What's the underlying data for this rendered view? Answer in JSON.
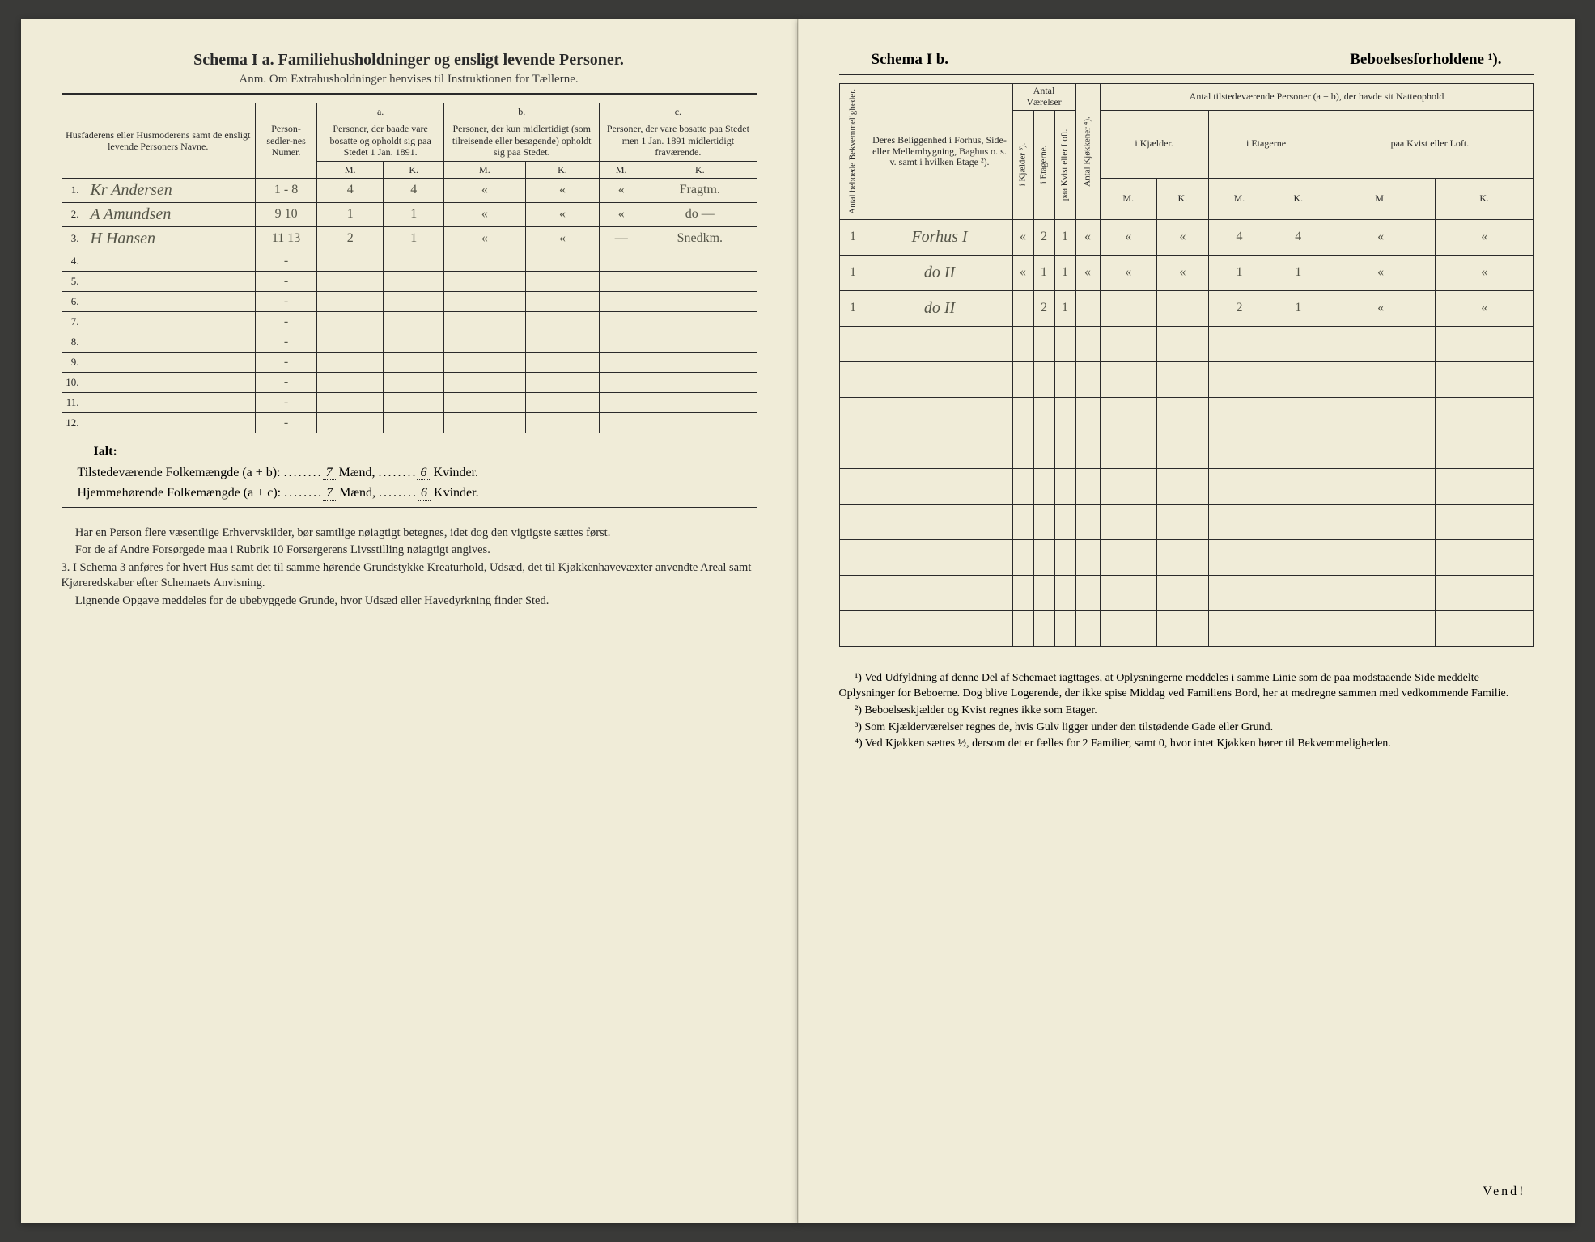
{
  "left": {
    "title": "Schema I a.  Familiehusholdninger og ensligt levende Personer.",
    "subtitle": "Anm. Om Extrahusholdninger henvises til Instruktionen for Tællerne.",
    "col_headers": {
      "name": "Husfaderens eller Husmoderens samt de ensligt levende Personers Navne.",
      "sedler": "Person-sedler-nes Numer.",
      "a_label": "a.",
      "a_text": "Personer, der baade vare bosatte og opholdt sig paa Stedet 1 Jan. 1891.",
      "b_label": "b.",
      "b_text": "Personer, der kun midlertidigt (som tilreisende eller besøgende) opholdt sig paa Stedet.",
      "c_label": "c.",
      "c_text": "Personer, der vare bosatte paa Stedet men 1 Jan. 1891 midlertidigt fraværende.",
      "m": "M.",
      "k": "K."
    },
    "rows": [
      {
        "n": "1.",
        "name": "Kr Andersen",
        "sedler": "1 - 8",
        "am": "4",
        "ak": "4",
        "bm": "«",
        "bk": "«",
        "cm": "«",
        "ck": "Fragtm."
      },
      {
        "n": "2.",
        "name": "A Amundsen",
        "sedler": "9 10",
        "am": "1",
        "ak": "1",
        "bm": "«",
        "bk": "«",
        "cm": "«",
        "ck": "do —"
      },
      {
        "n": "3.",
        "name": "H Hansen",
        "sedler": "11 13",
        "am": "2",
        "ak": "1",
        "bm": "«",
        "bk": "«",
        "cm": "—",
        "ck": "Snedkm."
      },
      {
        "n": "4.",
        "name": "",
        "sedler": "-",
        "am": "",
        "ak": "",
        "bm": "",
        "bk": "",
        "cm": "",
        "ck": ""
      },
      {
        "n": "5.",
        "name": "",
        "sedler": "-",
        "am": "",
        "ak": "",
        "bm": "",
        "bk": "",
        "cm": "",
        "ck": ""
      },
      {
        "n": "6.",
        "name": "",
        "sedler": "-",
        "am": "",
        "ak": "",
        "bm": "",
        "bk": "",
        "cm": "",
        "ck": ""
      },
      {
        "n": "7.",
        "name": "",
        "sedler": "-",
        "am": "",
        "ak": "",
        "bm": "",
        "bk": "",
        "cm": "",
        "ck": ""
      },
      {
        "n": "8.",
        "name": "",
        "sedler": "-",
        "am": "",
        "ak": "",
        "bm": "",
        "bk": "",
        "cm": "",
        "ck": ""
      },
      {
        "n": "9.",
        "name": "",
        "sedler": "-",
        "am": "",
        "ak": "",
        "bm": "",
        "bk": "",
        "cm": "",
        "ck": ""
      },
      {
        "n": "10.",
        "name": "",
        "sedler": "-",
        "am": "",
        "ak": "",
        "bm": "",
        "bk": "",
        "cm": "",
        "ck": ""
      },
      {
        "n": "11.",
        "name": "",
        "sedler": "-",
        "am": "",
        "ak": "",
        "bm": "",
        "bk": "",
        "cm": "",
        "ck": ""
      },
      {
        "n": "12.",
        "name": "",
        "sedler": "-",
        "am": "",
        "ak": "",
        "bm": "",
        "bk": "",
        "cm": "",
        "ck": ""
      }
    ],
    "totals": {
      "ialt": "Ialt:",
      "line1_label": "Tilstedeværende Folkemængde (a + b):",
      "line2_label": "Hjemmehørende Folkemængde (a + c):",
      "m1": "7",
      "k1": "6",
      "m2": "7",
      "k2": "6",
      "maend": "Mænd,",
      "kvinder": "Kvinder."
    },
    "notes": [
      "Har en Person flere væsentlige Erhvervskilder, bør samtlige nøiagtigt betegnes, idet dog den vigtigste sættes først.",
      "For de af Andre Forsørgede maa i Rubrik 10 Forsørgerens Livsstilling nøiagtigt angives.",
      "3. I Schema 3 anføres for hvert Hus samt det til samme hørende Grundstykke Kreaturhold, Udsæd, det til Kjøkkenhavevæxter anvendte Areal samt Kjøreredskaber efter Schemaets Anvisning.",
      "Lignende Opgave meddeles for de ubebyggede Grunde, hvor Udsæd eller Havedyrkning finder Sted."
    ]
  },
  "right": {
    "title_a": "Schema I b.",
    "title_b": "Beboelsesforholdene ¹).",
    "col_headers": {
      "bekv": "Antal beboede Bekvemmeligheder.",
      "belig": "Deres Beliggenhed i Forhus, Side- eller Mellembygning, Baghus o. s. v. samt i hvilken Etage ²).",
      "vaer": "Antal Værelser",
      "kjael": "i Kjælder ³).",
      "etag": "i Etagerne.",
      "kvist": "paa Kvist eller Loft.",
      "kjok": "Antal Kjøkkener ⁴).",
      "pers": "Antal tilstedeværende Personer (a + b), der havde sit Natteophold",
      "p_kjael": "i Kjælder.",
      "p_etag": "i Etagerne.",
      "p_kvist": "paa Kvist eller Loft.",
      "m": "M.",
      "k": "K."
    },
    "rows": [
      {
        "bekv": "1",
        "belig": "Forhus I",
        "k": "«",
        "e": "2",
        "kv": "1",
        "kj": "«",
        "km": "«",
        "kk": "«",
        "em": "4",
        "ek": "4",
        "lm": "«",
        "lk": "«"
      },
      {
        "bekv": "1",
        "belig": "do II",
        "k": "«",
        "e": "1",
        "kv": "1",
        "kj": "«",
        "km": "«",
        "kk": "«",
        "em": "1",
        "ek": "1",
        "lm": "«",
        "lk": "«"
      },
      {
        "bekv": "1",
        "belig": "do II",
        "k": "",
        "e": "2",
        "kv": "1",
        "kj": "",
        "km": "",
        "kk": "",
        "em": "2",
        "ek": "1",
        "lm": "«",
        "lk": "«"
      },
      {
        "bekv": "",
        "belig": "",
        "k": "",
        "e": "",
        "kv": "",
        "kj": "",
        "km": "",
        "kk": "",
        "em": "",
        "ek": "",
        "lm": "",
        "lk": ""
      },
      {
        "bekv": "",
        "belig": "",
        "k": "",
        "e": "",
        "kv": "",
        "kj": "",
        "km": "",
        "kk": "",
        "em": "",
        "ek": "",
        "lm": "",
        "lk": ""
      },
      {
        "bekv": "",
        "belig": "",
        "k": "",
        "e": "",
        "kv": "",
        "kj": "",
        "km": "",
        "kk": "",
        "em": "",
        "ek": "",
        "lm": "",
        "lk": ""
      },
      {
        "bekv": "",
        "belig": "",
        "k": "",
        "e": "",
        "kv": "",
        "kj": "",
        "km": "",
        "kk": "",
        "em": "",
        "ek": "",
        "lm": "",
        "lk": ""
      },
      {
        "bekv": "",
        "belig": "",
        "k": "",
        "e": "",
        "kv": "",
        "kj": "",
        "km": "",
        "kk": "",
        "em": "",
        "ek": "",
        "lm": "",
        "lk": ""
      },
      {
        "bekv": "",
        "belig": "",
        "k": "",
        "e": "",
        "kv": "",
        "kj": "",
        "km": "",
        "kk": "",
        "em": "",
        "ek": "",
        "lm": "",
        "lk": ""
      },
      {
        "bekv": "",
        "belig": "",
        "k": "",
        "e": "",
        "kv": "",
        "kj": "",
        "km": "",
        "kk": "",
        "em": "",
        "ek": "",
        "lm": "",
        "lk": ""
      },
      {
        "bekv": "",
        "belig": "",
        "k": "",
        "e": "",
        "kv": "",
        "kj": "",
        "km": "",
        "kk": "",
        "em": "",
        "ek": "",
        "lm": "",
        "lk": ""
      },
      {
        "bekv": "",
        "belig": "",
        "k": "",
        "e": "",
        "kv": "",
        "kj": "",
        "km": "",
        "kk": "",
        "em": "",
        "ek": "",
        "lm": "",
        "lk": ""
      }
    ],
    "footnotes": [
      "¹) Ved Udfyldning af denne Del af Schemaet iagttages, at Oplysningerne meddeles i samme Linie som de paa modstaaende Side meddelte Oplysninger for Beboerne. Dog blive Logerende, der ikke spise Middag ved Familiens Bord, her at medregne sammen med vedkommende Familie.",
      "²) Beboelseskjælder og Kvist regnes ikke som Etager.",
      "³) Som Kjælderværelser regnes de, hvis Gulv ligger under den tilstødende Gade eller Grund.",
      "⁴) Ved Kjøkken sættes ½, dersom det er fælles for 2 Familier, samt 0, hvor intet Kjøkken hører til Bekvemmeligheden."
    ],
    "vend": "Vend!"
  },
  "colors": {
    "paper": "#f0ecd8",
    "ink": "#2a2a2a",
    "handwriting": "#555548",
    "background": "#3a3a38"
  }
}
